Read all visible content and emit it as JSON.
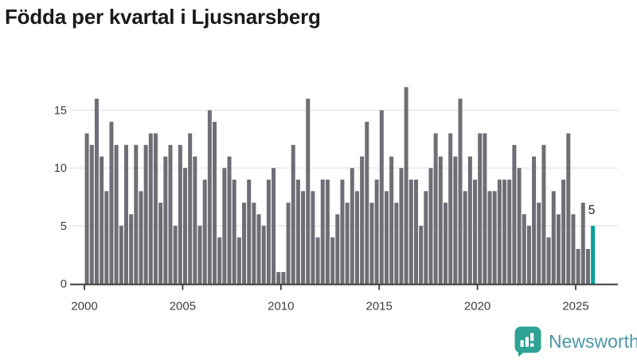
{
  "header": {
    "title": "Födda per kvartal i Ljusnarsberg"
  },
  "chart_data": {
    "type": "bar",
    "title": "Födda per kvartal i Ljusnarsberg",
    "xlabel": "",
    "ylabel": "",
    "start_quarter": "2000 Q1",
    "end_quarter": "2025 Q4",
    "x_tick_labels": [
      "2000",
      "2005",
      "2010",
      "2015",
      "2020",
      "2025"
    ],
    "y_ticks": [
      0,
      5,
      10,
      15
    ],
    "ylim": [
      0,
      17.6
    ],
    "grid": "horizontal",
    "legend": "none",
    "bar_color": "#6f6e76",
    "highlight_color": "#00a09a",
    "highlight_index": 103,
    "last_value_label": "5",
    "values": [
      13,
      12,
      16,
      11,
      8,
      14,
      12,
      5,
      12,
      6,
      12,
      8,
      12,
      13,
      13,
      7,
      11,
      12,
      5,
      12,
      10,
      13,
      11,
      5,
      9,
      15,
      14,
      4,
      10,
      11,
      9,
      4,
      7,
      9,
      7,
      6,
      5,
      9,
      10,
      1,
      1,
      7,
      12,
      9,
      8,
      16,
      8,
      4,
      9,
      9,
      4,
      6,
      9,
      7,
      10,
      8,
      11,
      14,
      7,
      9,
      15,
      8,
      11,
      7,
      10,
      17,
      9,
      9,
      5,
      8,
      10,
      13,
      11,
      7,
      13,
      11,
      16,
      8,
      11,
      9,
      13,
      13,
      8,
      8,
      9,
      9,
      9,
      12,
      10,
      6,
      5,
      11,
      7,
      12,
      4,
      8,
      6,
      9,
      13,
      6,
      3,
      7,
      3,
      5
    ]
  },
  "footer": {
    "brand": "Newsworthy",
    "logo_icon": "bar-chart-speech-bubble-icon",
    "brand_text_color": "#4c96a4",
    "icon_color": "#2da295"
  },
  "colors": {
    "gridline": "#e9e9e9",
    "axis_line": "#3d3d3d",
    "axis_label": "#3d3d3d",
    "annotation": "#222222"
  }
}
